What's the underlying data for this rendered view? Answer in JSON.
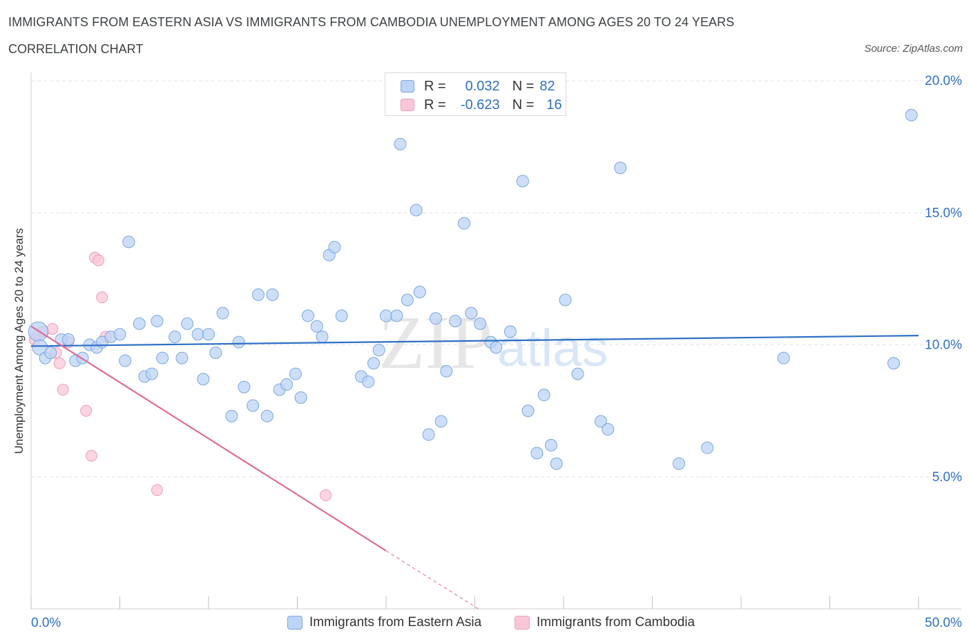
{
  "title": "IMMIGRANTS FROM EASTERN ASIA VS IMMIGRANTS FROM CAMBODIA UNEMPLOYMENT AMONG AGES 20 TO 24 YEARS",
  "subtitle": "CORRELATION CHART",
  "source": "Source: ZipAtlas.com",
  "watermark": {
    "zip": "ZIP",
    "atlas": "atlas"
  },
  "legend": {
    "r_label": "R =",
    "n_label": "N =",
    "rows": [
      {
        "r": "0.032",
        "n": "82"
      },
      {
        "r": "-0.623",
        "n": "16"
      }
    ]
  },
  "colors": {
    "blue_fill": "#bcd4f5",
    "blue_stroke": "#7aa6e3",
    "blue_line": "#2e6fc4",
    "pink_fill": "#f9c7d7",
    "pink_stroke": "#ee9db8",
    "pink_line": "#e06a98",
    "tick_text": "#2e6fc4"
  },
  "chart_data": {
    "type": "scatter",
    "title": "IMMIGRANTS FROM EASTERN ASIA VS IMMIGRANTS FROM CAMBODIA UNEMPLOYMENT AMONG AGES 20 TO 24 YEARS",
    "xlabel": "",
    "ylabel": "Unemployment Among Ages 20 to 24 years",
    "xlim": [
      0,
      50
    ],
    "ylim": [
      0,
      20
    ],
    "x_tick_labels": [
      "0.0%",
      "50.0%"
    ],
    "y_ticks": [
      5,
      10,
      15,
      20
    ],
    "y_tick_labels": [
      "5.0%",
      "10.0%",
      "15.0%",
      "20.0%"
    ],
    "grid": true,
    "series": [
      {
        "name": "Immigrants from Eastern Asia",
        "color": "#bcd4f5",
        "points": [
          [
            0.4,
            10.5
          ],
          [
            0.5,
            9.9
          ],
          [
            0.8,
            9.5
          ],
          [
            1.1,
            9.7
          ],
          [
            1.7,
            10.2
          ],
          [
            2.1,
            10.2
          ],
          [
            2.5,
            9.4
          ],
          [
            2.9,
            9.5
          ],
          [
            3.3,
            10
          ],
          [
            3.7,
            9.9
          ],
          [
            4.0,
            10.1
          ],
          [
            4.5,
            10.3
          ],
          [
            5.0,
            10.4
          ],
          [
            5.3,
            9.4
          ],
          [
            5.5,
            13.9
          ],
          [
            6.1,
            10.8
          ],
          [
            6.4,
            8.8
          ],
          [
            6.8,
            8.9
          ],
          [
            7.1,
            10.9
          ],
          [
            7.4,
            9.5
          ],
          [
            8.1,
            10.3
          ],
          [
            8.5,
            9.5
          ],
          [
            8.8,
            10.8
          ],
          [
            9.4,
            10.4
          ],
          [
            9.7,
            8.7
          ],
          [
            10.0,
            10.4
          ],
          [
            10.4,
            9.7
          ],
          [
            10.8,
            11.2
          ],
          [
            11.3,
            7.3
          ],
          [
            11.7,
            10.1
          ],
          [
            12.0,
            8.4
          ],
          [
            12.5,
            7.7
          ],
          [
            12.8,
            11.9
          ],
          [
            13.3,
            7.3
          ],
          [
            13.6,
            11.9
          ],
          [
            14.0,
            8.3
          ],
          [
            14.4,
            8.5
          ],
          [
            14.9,
            8.9
          ],
          [
            15.2,
            8.0
          ],
          [
            15.6,
            11.1
          ],
          [
            16.1,
            10.7
          ],
          [
            16.4,
            10.3
          ],
          [
            16.8,
            13.4
          ],
          [
            17.1,
            13.7
          ],
          [
            17.5,
            11.1
          ],
          [
            18.6,
            8.8
          ],
          [
            19.0,
            8.6
          ],
          [
            19.3,
            9.3
          ],
          [
            19.6,
            9.8
          ],
          [
            20.0,
            11.1
          ],
          [
            20.6,
            11.1
          ],
          [
            20.8,
            17.6
          ],
          [
            21.2,
            11.7
          ],
          [
            21.7,
            15.1
          ],
          [
            21.9,
            12.0
          ],
          [
            22.4,
            6.6
          ],
          [
            22.8,
            11.0
          ],
          [
            23.1,
            7.1
          ],
          [
            23.4,
            9.0
          ],
          [
            23.9,
            10.9
          ],
          [
            24.4,
            14.6
          ],
          [
            24.8,
            11.2
          ],
          [
            25.3,
            10.8
          ],
          [
            25.9,
            10.1
          ],
          [
            26.2,
            9.9
          ],
          [
            27.0,
            10.5
          ],
          [
            27.7,
            16.2
          ],
          [
            28.0,
            7.5
          ],
          [
            28.5,
            5.9
          ],
          [
            28.9,
            8.1
          ],
          [
            29.3,
            6.2
          ],
          [
            29.6,
            5.5
          ],
          [
            30.1,
            11.7
          ],
          [
            30.8,
            8.9
          ],
          [
            32.1,
            7.1
          ],
          [
            32.5,
            6.8
          ],
          [
            33.2,
            16.7
          ],
          [
            36.5,
            5.5
          ],
          [
            38.1,
            6.1
          ],
          [
            42.4,
            9.5
          ],
          [
            48.6,
            9.3
          ],
          [
            49.6,
            18.7
          ]
        ]
      },
      {
        "name": "Immigrants from Cambodia",
        "color": "#f9c7d7",
        "points": [
          [
            0.2,
            10.2
          ],
          [
            0.4,
            10.4
          ],
          [
            0.7,
            10.5
          ],
          [
            1.2,
            10.6
          ],
          [
            1.4,
            9.7
          ],
          [
            1.6,
            9.3
          ],
          [
            1.8,
            8.3
          ],
          [
            2.1,
            10.1
          ],
          [
            3.1,
            7.5
          ],
          [
            3.4,
            5.8
          ],
          [
            3.6,
            13.3
          ],
          [
            3.8,
            13.2
          ],
          [
            4.0,
            11.8
          ],
          [
            4.2,
            10.3
          ],
          [
            7.1,
            4.5
          ],
          [
            16.6,
            4.3
          ]
        ]
      }
    ],
    "trend_lines": [
      {
        "series": "Immigrants from Eastern Asia",
        "x": [
          0,
          50
        ],
        "y": [
          9.95,
          10.35
        ]
      },
      {
        "series": "Immigrants from Cambodia",
        "x": [
          0,
          20
        ],
        "y": [
          10.7,
          2.2
        ],
        "dashed_extension": {
          "x": [
            20,
            25.2
          ],
          "y": [
            2.2,
            0
          ]
        }
      }
    ]
  }
}
